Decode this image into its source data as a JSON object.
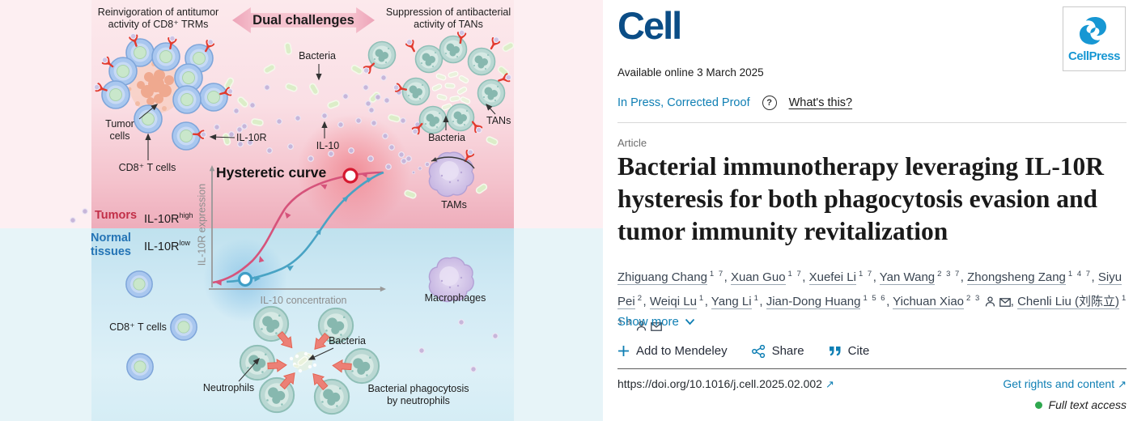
{
  "abstract": {
    "captions": {
      "left1": "Reinvigoration of antitumor",
      "left2": "activity of CD8⁺ TRMs",
      "banner": "Dual challenges",
      "right1": "Suppression of antibacterial",
      "right2": "activity of TANs"
    },
    "labels": {
      "bacteria_top": "Bacteria",
      "tumor1": "Tumor",
      "tumor2": "cells",
      "cd8_top": "CD8⁺ T cells",
      "il10r": "IL-10R",
      "il10": "IL-10",
      "tans": "TANs",
      "bacteria_tans": "Bacteria",
      "tams": "TAMs",
      "hysteretic": "Hysteretic curve",
      "tumors": "Tumors",
      "il10r_high_base": "IL-10R",
      "il10r_high_sup": "high",
      "normal1": "Normal",
      "normal2": "tissues",
      "il10r_low_base": "IL-10R",
      "il10r_low_sup": "low",
      "yaxis": "IL-10R expression",
      "xaxis": "IL-10 concentration",
      "macrophages": "Macrophages",
      "cd8_bottom": "CD8⁺ T cells",
      "neutrophils": "Neutrophils",
      "bacteria_bottom": "Bacteria",
      "phago1": "Bacterial phagocytosis",
      "phago2": "by neutrophils"
    }
  },
  "article": {
    "journal": "Cell",
    "brand": "CellPress",
    "available": "Available online 3 March 2025",
    "in_press": "In Press, Corrected Proof",
    "question": "?",
    "whats_this": "What's this?",
    "type": "Article",
    "title_line1": "Bacterial immunotherapy leveraging IL-10R",
    "title_line2": "hysteresis for both phagocytosis evasion and",
    "title_line3": "tumor immunity revitalization",
    "authors": [
      {
        "name": "Zhiguang Chang",
        "sups": "1 7"
      },
      {
        "name": "Xuan Guo",
        "sups": "1 7"
      },
      {
        "name": "Xuefei Li",
        "sups": "1 7"
      },
      {
        "name": "Yan Wang",
        "sups": "2 3 7"
      },
      {
        "name": "Zhongsheng Zang",
        "sups": "1 4 7"
      },
      {
        "name": "Siyu Pei",
        "sups": "2"
      },
      {
        "name": "Weiqi Lu",
        "sups": "1"
      },
      {
        "name": "Yang Li",
        "sups": "1"
      },
      {
        "name": "Jian-Dong Huang",
        "sups": "1 5 6"
      },
      {
        "name": "Yichuan Xiao",
        "sups": "2 3",
        "person": true,
        "mail": true
      },
      {
        "name": "Chenli Liu (刘陈立)",
        "sups": "1 3 8",
        "person": true,
        "mail": true
      }
    ],
    "comma": ", ",
    "show_more": "Show more",
    "add_mendeley": "Add to Mendeley",
    "share": "Share",
    "cite": "Cite",
    "doi": "https://doi.org/10.1016/j.cell.2025.02.002",
    "external_arrow": "↗",
    "rights": "Get rights and content",
    "access": "Full text access"
  },
  "colors": {
    "accent_blue": "#0f7fb4",
    "cell_logo_blue": "#0b4d86",
    "cellpress_blue": "#1797d3",
    "green_access": "#2fa84f",
    "tumors_red": "#c22f48",
    "normal_blue": "#2474b5",
    "curve_pink": "#d6537b",
    "curve_teal": "#49a3c4"
  }
}
